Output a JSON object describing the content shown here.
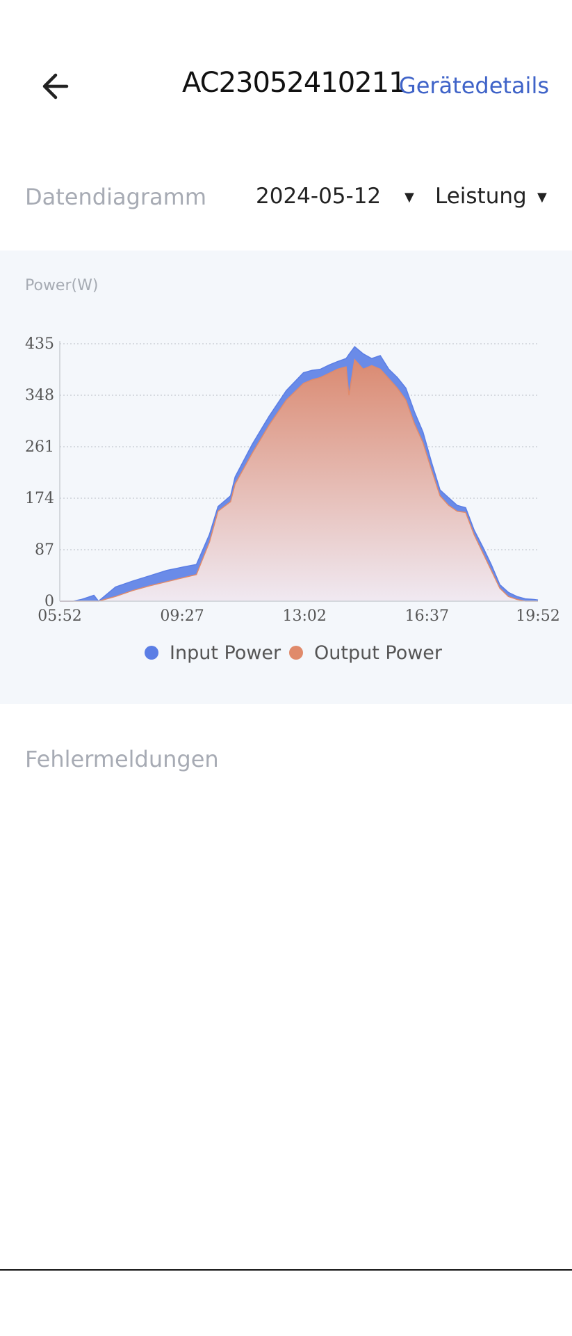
{
  "header": {
    "title": "AC23052410211",
    "details_link": "Gerätedetails",
    "back_icon": "arrow-left-icon"
  },
  "filters": {
    "diagram_label": "Datendiagramm",
    "date": "2024-05-12",
    "metric": "Leistung",
    "dropdown_icon": "triangle-down-icon"
  },
  "colors": {
    "accent": "#3f63c8",
    "input_power": "#5b7ee5",
    "output_power": "#e08a6b",
    "panel_bg": "#f4f7fb"
  },
  "chart_data": {
    "type": "area",
    "ylabel": "Power(W)",
    "ylim": [
      0,
      435
    ],
    "yticks": [
      "435",
      "348",
      "261",
      "174",
      "87",
      "0"
    ],
    "xticks": [
      "05:52",
      "09:27",
      "13:02",
      "16:37",
      "19:52"
    ],
    "xlim_minutes": [
      352,
      1192
    ],
    "grid": true,
    "legend_position": "bottom",
    "series": [
      {
        "name": "Input Power",
        "color": "#5b7ee5",
        "x": [
          "05:52",
          "06:15",
          "06:30",
          "06:52",
          "07:00",
          "07:30",
          "08:00",
          "08:30",
          "09:00",
          "09:30",
          "09:52",
          "10:15",
          "10:30",
          "10:52",
          "11:00",
          "11:30",
          "12:00",
          "12:30",
          "13:00",
          "13:15",
          "13:30",
          "13:45",
          "14:00",
          "14:15",
          "14:20",
          "14:30",
          "14:45",
          "15:00",
          "15:15",
          "15:30",
          "15:45",
          "16:00",
          "16:15",
          "16:30",
          "16:45",
          "17:00",
          "17:15",
          "17:30",
          "17:45",
          "18:00",
          "18:15",
          "18:30",
          "18:45",
          "19:00",
          "19:15",
          "19:30",
          "19:45",
          "19:52"
        ],
        "values": [
          0,
          0,
          3,
          10,
          0,
          24,
          34,
          43,
          52,
          58,
          62,
          113,
          160,
          178,
          210,
          265,
          313,
          356,
          386,
          390,
          392,
          399,
          405,
          410,
          417,
          430,
          418,
          410,
          415,
          392,
          378,
          360,
          320,
          286,
          235,
          188,
          175,
          162,
          158,
          120,
          92,
          62,
          28,
          15,
          8,
          4,
          3,
          2
        ]
      },
      {
        "name": "Output Power",
        "color": "#e08a6b",
        "x": [
          "05:52",
          "06:15",
          "06:30",
          "06:52",
          "07:00",
          "07:30",
          "08:00",
          "08:30",
          "09:00",
          "09:30",
          "09:52",
          "10:15",
          "10:30",
          "10:52",
          "11:00",
          "11:30",
          "12:00",
          "12:30",
          "13:00",
          "13:15",
          "13:30",
          "13:45",
          "14:00",
          "14:15",
          "14:20",
          "14:30",
          "14:45",
          "15:00",
          "15:15",
          "15:30",
          "15:45",
          "16:00",
          "16:15",
          "16:30",
          "16:45",
          "17:00",
          "17:15",
          "17:30",
          "17:45",
          "18:00",
          "18:15",
          "18:30",
          "18:45",
          "19:00",
          "19:15",
          "19:30",
          "19:45",
          "19:52"
        ],
        "values": [
          0,
          0,
          0,
          0,
          0,
          8,
          18,
          26,
          33,
          40,
          45,
          100,
          152,
          168,
          198,
          250,
          298,
          340,
          368,
          374,
          378,
          385,
          392,
          396,
          348,
          408,
          392,
          398,
          392,
          376,
          360,
          340,
          300,
          268,
          222,
          178,
          162,
          152,
          150,
          112,
          82,
          52,
          22,
          8,
          3,
          0,
          0,
          0
        ]
      }
    ]
  },
  "errors": {
    "label": "Fehlermeldungen"
  }
}
